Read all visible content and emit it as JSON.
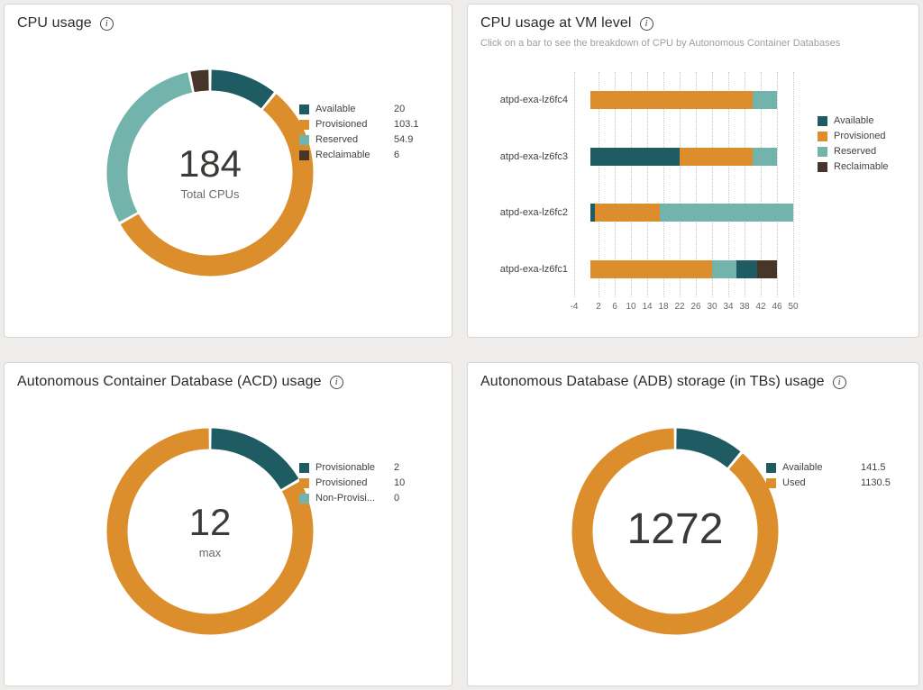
{
  "chart_data": [
    {
      "id": "cpu-usage-donut",
      "type": "pie",
      "variant": "donut",
      "title": "CPU usage",
      "center_value": "184",
      "center_label": "Total CPUs",
      "legend_position": "right",
      "segments": [
        {
          "label": "Available",
          "value": 20,
          "color": "#1f5b63"
        },
        {
          "label": "Provisioned",
          "value": 103.1,
          "color": "#dd8e2c"
        },
        {
          "label": "Reserved",
          "value": 54.9,
          "color": "#72b4ab"
        },
        {
          "label": "Reclaimable",
          "value": 6,
          "color": "#463528"
        }
      ]
    },
    {
      "id": "cpu-vm-level-bars",
      "type": "bar",
      "orientation": "horizontal",
      "stacked": true,
      "grid": "dotted-vertical",
      "title": "CPU usage at VM level",
      "subtitle": "Click on a bar to see the breakdown of CPU by Autonomous Container Databases",
      "x_axis": {
        "min": -4,
        "max": 52,
        "ticks": [
          -4,
          2,
          6,
          10,
          14,
          18,
          22,
          26,
          30,
          34,
          38,
          42,
          46,
          50
        ]
      },
      "series_colors": {
        "Available": "#1f5b63",
        "Provisioned": "#dd8e2c",
        "Reserved": "#72b4ab",
        "Reclaimable": "#463528"
      },
      "legend": [
        "Available",
        "Provisioned",
        "Reserved",
        "Reclaimable"
      ],
      "legend_position": "right",
      "bars": [
        {
          "category": "atpd-exa-lz6fc4",
          "segments": [
            [
              "Provisioned",
              40
            ],
            [
              "Reserved",
              6
            ]
          ]
        },
        {
          "category": "atpd-exa-lz6fc3",
          "segments": [
            [
              "Available",
              22
            ],
            [
              "Provisioned",
              18
            ],
            [
              "Reserved",
              6
            ]
          ]
        },
        {
          "category": "atpd-exa-lz6fc2",
          "segments": [
            [
              "Available",
              1
            ],
            [
              "Provisioned",
              16
            ],
            [
              "Reserved",
              33
            ]
          ]
        },
        {
          "category": "atpd-exa-lz6fc1",
          "segments": [
            [
              "Provisioned",
              30
            ],
            [
              "Reserved",
              6
            ],
            [
              "Available",
              5
            ],
            [
              "Reclaimable",
              5
            ]
          ]
        }
      ]
    },
    {
      "id": "acd-usage-donut",
      "type": "pie",
      "variant": "donut",
      "title": "Autonomous Container Database (ACD) usage",
      "center_value": "12",
      "center_label": "max",
      "legend_position": "right",
      "segments": [
        {
          "label": "Provisionable",
          "value": 2,
          "color": "#1f5b63"
        },
        {
          "label": "Provisioned",
          "value": 10,
          "color": "#dd8e2c"
        },
        {
          "label": "Non-Provisi...",
          "value": 0,
          "color": "#72b4ab"
        }
      ]
    },
    {
      "id": "adb-storage-donut",
      "type": "pie",
      "variant": "donut",
      "title": "Autonomous Database (ADB) storage (in TBs) usage",
      "center_value": "1272",
      "center_label": "",
      "legend_position": "right",
      "segments": [
        {
          "label": "Available",
          "value": 141.5,
          "color": "#1f5b63"
        },
        {
          "label": "Used",
          "value": 1130.5,
          "color": "#dd8e2c"
        }
      ]
    }
  ]
}
